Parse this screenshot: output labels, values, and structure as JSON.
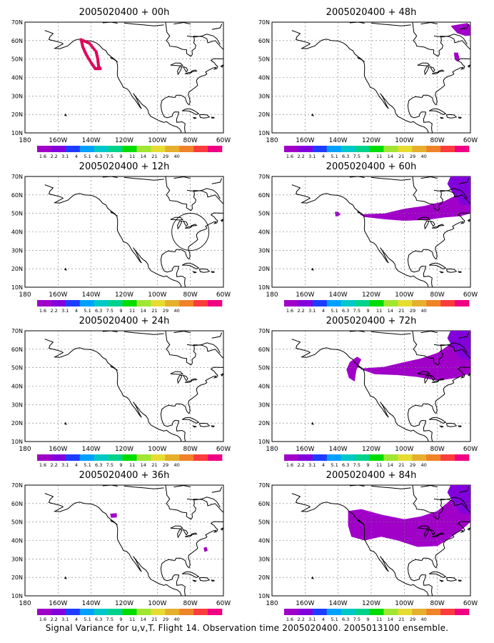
{
  "figure": {
    "caption": "Signal Variance for u,v,T. Flight 14. Observation time 2005020400. 2005013100 ensemble."
  },
  "axes": {
    "x_ticks": [
      "180",
      "160W",
      "140W",
      "120W",
      "100W",
      "80W",
      "60W"
    ],
    "y_ticks": [
      "70N",
      "60N",
      "50N",
      "40N",
      "30N",
      "20N",
      "10N"
    ]
  },
  "colorbar": {
    "labels": [
      "1.6",
      "2.2",
      "3.1",
      "4",
      "5.1",
      "6.3",
      "7.5",
      "9",
      "11",
      "14",
      "21",
      "29",
      "40"
    ],
    "colors": [
      "#a000c8",
      "#8200dc",
      "#1e3cff",
      "#00a0ff",
      "#00c8c8",
      "#00d28c",
      "#00dc00",
      "#a0e632",
      "#e6dc32",
      "#e6af2d",
      "#f08228",
      "#fa3c3c",
      "#f00082"
    ]
  },
  "panels": [
    {
      "title": "2005020400 + 00h",
      "hour": 0,
      "features": [
        "flight-track"
      ]
    },
    {
      "title": "2005020400 + 48h",
      "hour": 48,
      "features": [
        "signal-newfoundland",
        "signal-nova-scotia"
      ]
    },
    {
      "title": "2005020400 + 12h",
      "hour": 12,
      "features": [
        "great-lakes-circle"
      ]
    },
    {
      "title": "2005020400 + 60h",
      "hour": 60,
      "features": [
        "signal-pacific-small",
        "signal-northeast-band",
        "signal-labrador"
      ]
    },
    {
      "title": "2005020400 + 24h",
      "hour": 24,
      "features": []
    },
    {
      "title": "2005020400 + 72h",
      "hour": 72,
      "features": [
        "signal-pacific-coast",
        "signal-northeast-band-large",
        "signal-labrador"
      ]
    },
    {
      "title": "2005020400 + 36h",
      "hour": 36,
      "features": [
        "signal-pacific-dot",
        "signal-atlantic-dot"
      ]
    },
    {
      "title": "2005020400 + 84h",
      "hour": 84,
      "features": [
        "signal-continental-band",
        "signal-labrador"
      ]
    }
  ],
  "colors": {
    "signal_fill": "#a000c8",
    "signal_dark": "#8200dc",
    "track": "#e0005a"
  }
}
